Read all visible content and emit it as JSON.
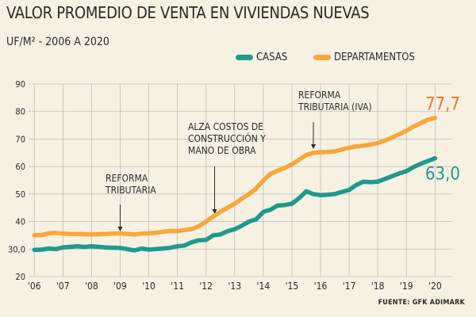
{
  "title": "VALOR PROMEDIO DE VENTA EN VIVIENDAS  NUEVAS",
  "subtitle": "UF/M² - 2006 A 2020",
  "source": "FUENTE: GFK ADIMARK",
  "legend": {
    "casas": "CASAS",
    "departamentos": "DEPARTAMENTOS"
  },
  "colors": {
    "casas": "#1f9a8c",
    "departamentos": "#f7a83a",
    "grid": "#bdbdbd",
    "background": "#f7f1e3"
  },
  "chart_data": {
    "type": "line",
    "title": "VALOR PROMEDIO DE VENTA EN VIVIENDAS  NUEVAS",
    "subtitle": "UF/M² - 2006 A 2020",
    "xlabel": "",
    "ylabel": "UF/M²",
    "ylim": [
      20,
      90
    ],
    "yticks": [
      20,
      30,
      40,
      50,
      60,
      70,
      80,
      90
    ],
    "ytick_labels": [
      "20",
      "30,0",
      "40",
      "50",
      "60",
      "70",
      "80",
      "90"
    ],
    "xlim": [
      2005.8,
      2020.6
    ],
    "xticks": [
      2006,
      2007,
      2008,
      2009,
      2010,
      2011,
      2012,
      2013,
      2014,
      2015,
      2016,
      2017,
      2018,
      2019,
      2020
    ],
    "xtick_labels": [
      "'06",
      "'07",
      "'08",
      "'09",
      "'10",
      "'11",
      "'12",
      "'13",
      "'14",
      "'15",
      "'16",
      "'17",
      "'18",
      "'19",
      "'20"
    ],
    "grid": true,
    "series": [
      {
        "name": "CASAS",
        "color_key": "casas",
        "end_label": "63,0",
        "x": [
          2006,
          2006.25,
          2006.5,
          2006.75,
          2007,
          2007.25,
          2007.5,
          2007.75,
          2008,
          2008.25,
          2008.5,
          2008.75,
          2009,
          2009.25,
          2009.5,
          2009.75,
          2010,
          2010.25,
          2010.5,
          2010.75,
          2011,
          2011.25,
          2011.5,
          2011.75,
          2012,
          2012.25,
          2012.5,
          2012.75,
          2013,
          2013.25,
          2013.5,
          2013.75,
          2014,
          2014.25,
          2014.5,
          2014.75,
          2015,
          2015.25,
          2015.5,
          2015.75,
          2016,
          2016.25,
          2016.5,
          2016.75,
          2017,
          2017.25,
          2017.5,
          2017.75,
          2018,
          2018.25,
          2018.5,
          2018.75,
          2019,
          2019.25,
          2019.5,
          2019.75,
          2020
        ],
        "values": [
          29.7,
          29.8,
          30.2,
          30.0,
          30.6,
          30.8,
          31.0,
          30.8,
          31.0,
          30.8,
          30.6,
          30.5,
          30.4,
          30.0,
          29.5,
          30.2,
          29.8,
          30.0,
          30.2,
          30.5,
          31.0,
          31.3,
          32.5,
          33.2,
          33.3,
          35.0,
          35.3,
          36.5,
          37.2,
          38.5,
          40.0,
          40.8,
          43.5,
          44.3,
          45.8,
          46.0,
          46.5,
          48.5,
          51.0,
          50.0,
          49.6,
          49.8,
          50.0,
          50.8,
          51.5,
          53.3,
          54.5,
          54.3,
          54.5,
          55.5,
          56.5,
          57.5,
          58.3,
          59.8,
          61.0,
          62.0,
          63.0
        ]
      },
      {
        "name": "DEPARTAMENTOS",
        "color_key": "departamentos",
        "end_label": "77,7",
        "x": [
          2006,
          2006.25,
          2006.5,
          2006.75,
          2007,
          2007.25,
          2007.5,
          2007.75,
          2008,
          2008.25,
          2008.5,
          2008.75,
          2009,
          2009.25,
          2009.5,
          2009.75,
          2010,
          2010.25,
          2010.5,
          2010.75,
          2011,
          2011.25,
          2011.5,
          2011.75,
          2012,
          2012.25,
          2012.5,
          2012.75,
          2013,
          2013.25,
          2013.5,
          2013.75,
          2014,
          2014.25,
          2014.5,
          2014.75,
          2015,
          2015.25,
          2015.5,
          2015.75,
          2016,
          2016.25,
          2016.5,
          2016.75,
          2017,
          2017.25,
          2017.5,
          2017.75,
          2018,
          2018.25,
          2018.5,
          2018.75,
          2019,
          2019.25,
          2019.5,
          2019.75,
          2020
        ],
        "values": [
          35.0,
          35.1,
          35.7,
          35.9,
          35.6,
          35.5,
          35.5,
          35.4,
          35.3,
          35.4,
          35.5,
          35.6,
          35.7,
          35.5,
          35.3,
          35.6,
          35.7,
          35.9,
          36.3,
          36.6,
          36.5,
          36.9,
          37.3,
          38.3,
          40.0,
          41.8,
          43.5,
          45.0,
          46.5,
          48.3,
          50.0,
          52.0,
          55.0,
          57.3,
          58.5,
          59.5,
          60.8,
          62.5,
          64.2,
          65.0,
          65.2,
          65.3,
          65.5,
          66.2,
          66.8,
          67.3,
          67.6,
          68.0,
          68.5,
          69.5,
          70.5,
          71.8,
          73.0,
          74.5,
          75.8,
          77.0,
          77.7
        ]
      }
    ],
    "annotations": [
      {
        "lines": [
          "REFORMA",
          "TRIBUTARIA"
        ],
        "x": 2009
      },
      {
        "lines": [
          "ALZA COSTOS DE",
          "CONSTRUCCIÓN Y",
          "MANO DE OBRA"
        ],
        "x": 2012.3
      },
      {
        "lines": [
          "REFORMA",
          "TRIBUTARIA (IVA)"
        ],
        "x": 2015.75
      }
    ]
  }
}
